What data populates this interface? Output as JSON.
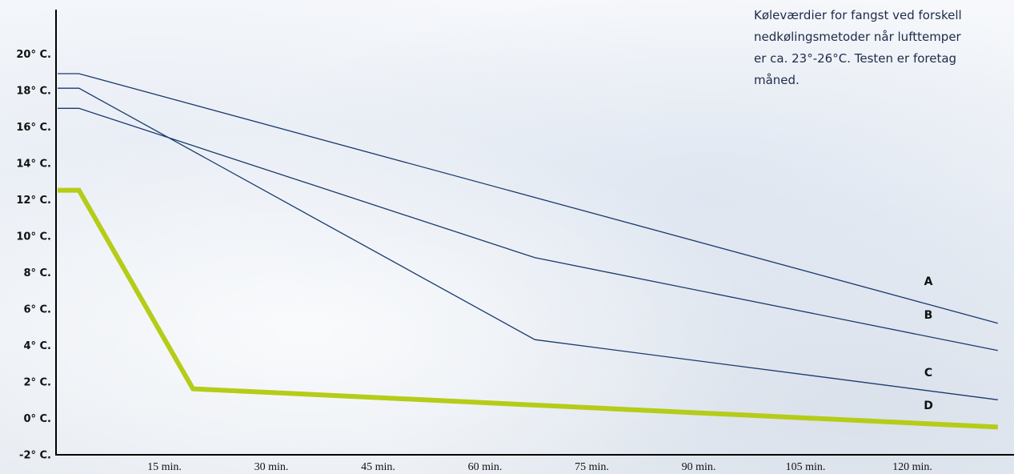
{
  "caption": {
    "lines": [
      "Køleværdier for fangst ved forskell",
      "nedkølingsmetoder når lufttemper",
      "er ca. 23°-26°C. Testen er foretag",
      "måned."
    ]
  },
  "colors": {
    "thin_lines": "#1a3a6e",
    "highlight_line": "#b5cc18",
    "axis": "#000000",
    "text": "#111111"
  },
  "chart_data": {
    "type": "line",
    "title": "",
    "xlabel": "",
    "ylabel": "",
    "x_ticks": [
      15,
      30,
      45,
      60,
      75,
      90,
      105,
      120
    ],
    "x_tick_labels": [
      "15 min.",
      "30 min.",
      "45 min.",
      "60 min.",
      "75 min.",
      "90 min.",
      "105 min.",
      "120 min."
    ],
    "y_ticks": [
      -2,
      0,
      2,
      4,
      6,
      8,
      10,
      12,
      14,
      16,
      18,
      20
    ],
    "y_tick_labels": [
      "-2° C.",
      "0° C.",
      "2° C.",
      "4° C.",
      "6° C.",
      "8° C.",
      "10° C.",
      "12° C.",
      "14° C.",
      "16° C.",
      "18° C.",
      "20° C."
    ],
    "xlim": [
      0,
      132
    ],
    "ylim": [
      -3,
      22
    ],
    "grid": false,
    "series": [
      {
        "name": "A",
        "x": [
          0,
          3,
          132
        ],
        "y": [
          18.9,
          18.9,
          5.2
        ]
      },
      {
        "name": "B",
        "x": [
          0,
          3,
          67,
          132
        ],
        "y": [
          17,
          17,
          8.8,
          3.7
        ]
      },
      {
        "name": "C",
        "x": [
          0,
          3,
          67,
          132
        ],
        "y": [
          18.1,
          18.1,
          4.3,
          1
        ]
      },
      {
        "name": "D",
        "x": [
          0,
          3,
          19,
          132
        ],
        "y": [
          12.5,
          12.5,
          1.6,
          -0.5
        ],
        "highlight": true
      }
    ]
  }
}
